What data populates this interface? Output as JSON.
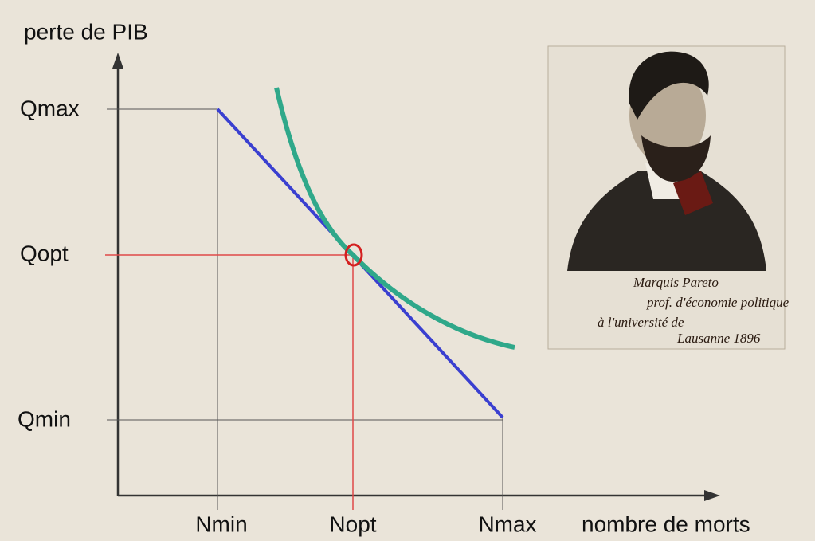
{
  "axes": {
    "y_label": "perte de PIB",
    "x_label": "nombre de morts"
  },
  "y_ticks": [
    "Qmax",
    "Qopt",
    "Qmin"
  ],
  "x_ticks": [
    "Nmin",
    "Nopt",
    "Nmax"
  ],
  "portrait": {
    "signature": [
      "Marquis Pareto",
      "prof. d'économie politique",
      "à l'université de",
      "Lausanne 1896"
    ]
  }
}
